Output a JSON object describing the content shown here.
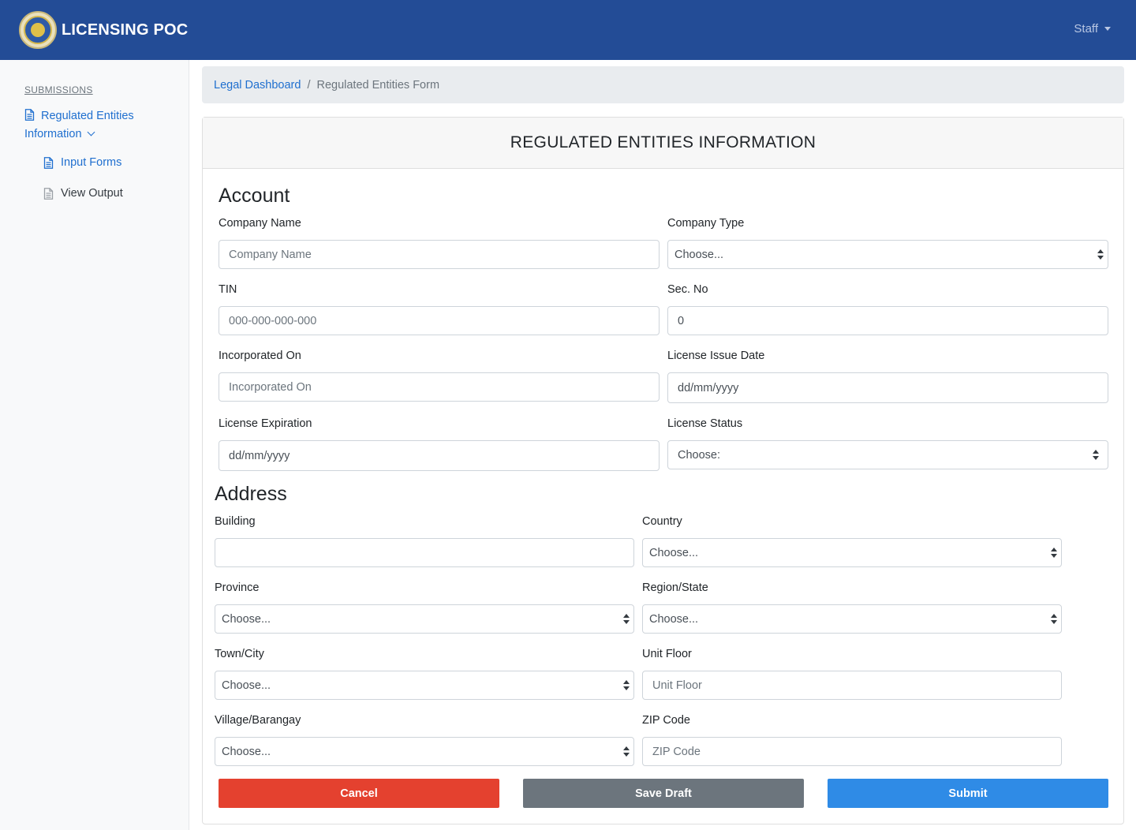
{
  "app": {
    "brand_name": "LICENSING POC",
    "user_menu_label": "Staff"
  },
  "sidebar": {
    "heading": "SUBMISSIONS",
    "parent_label_line1": "Regulated Entities",
    "parent_label_line2": "Information",
    "children": [
      {
        "label": "Input Forms",
        "active": true
      },
      {
        "label": "View Output",
        "active": false
      }
    ]
  },
  "breadcrumb": {
    "parent": "Legal Dashboard",
    "separator": "/",
    "current": "Regulated Entities Form"
  },
  "card": {
    "title": "REGULATED ENTITIES INFORMATION"
  },
  "account": {
    "title": "Account",
    "company_name": {
      "label": "Company Name",
      "placeholder": "Company Name"
    },
    "company_type": {
      "label": "Company Type",
      "value": "Choose..."
    },
    "tin": {
      "label": "TIN",
      "placeholder": "000-000-000-000"
    },
    "sec_no": {
      "label": "Sec. No",
      "value": "0"
    },
    "incorporated_on": {
      "label": "Incorporated On",
      "placeholder": "Incorporated On"
    },
    "license_issue_date": {
      "label": "License Issue Date",
      "value": "dd/mm/yyyy"
    },
    "license_expiration": {
      "label": "License Expiration",
      "value": "dd/mm/yyyy"
    },
    "license_status": {
      "label": "License Status",
      "value": "Choose:"
    }
  },
  "address": {
    "title": "Address",
    "building": {
      "label": "Building",
      "value": ""
    },
    "country": {
      "label": "Country",
      "value": "Choose..."
    },
    "province": {
      "label": "Province",
      "value": "Choose..."
    },
    "region_state": {
      "label": "Region/State",
      "value": "Choose..."
    },
    "town_city": {
      "label": "Town/City",
      "value": "Choose..."
    },
    "unit_floor": {
      "label": "Unit Floor",
      "placeholder": "Unit Floor"
    },
    "village_barangay": {
      "label": "Village/Barangay",
      "value": "Choose..."
    },
    "zip_code": {
      "label": "ZIP Code",
      "placeholder": "ZIP Code"
    }
  },
  "actions": {
    "cancel": "Cancel",
    "save_draft": "Save Draft",
    "submit": "Submit"
  },
  "colors": {
    "navbar": "#234c96",
    "link": "#1f6fcf",
    "cancel": "#e4412f",
    "draft": "#6c757d",
    "submit": "#2f8be6"
  },
  "icons": {
    "brand": "seal-logo",
    "user_menu": "caret-down-icon",
    "sidebar_parent": "document-icon",
    "sidebar_expand": "chevron-down-icon",
    "sidebar_children": "document-icon",
    "select": "select-updown-icon"
  }
}
